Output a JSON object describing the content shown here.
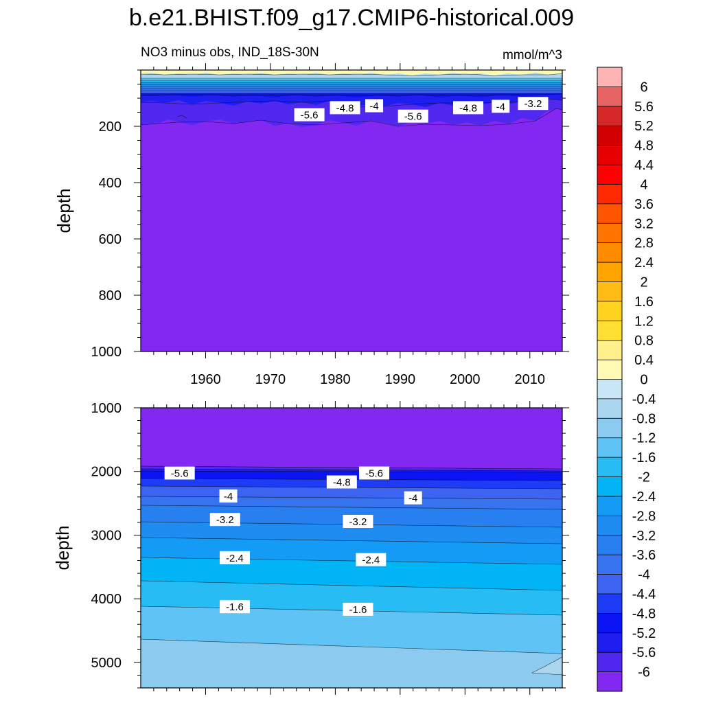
{
  "chart_data": {
    "title": "b.e21.BHIST.f09_g17.CMIP6-historical.009",
    "left_subtitle": "NO3 minus obs, IND_18S-30N",
    "right_subtitle": "mmol/m^3",
    "panels": [
      {
        "name": "upper-panel",
        "type": "contour",
        "ylabel": "depth",
        "ylim": [
          0,
          1000
        ],
        "xlim": [
          1950,
          2015
        ],
        "yticks": [
          200,
          400,
          600,
          800,
          1000
        ],
        "xticks": [
          1960,
          1970,
          1980,
          1990,
          2000,
          2010
        ],
        "contour_labels": [
          {
            "text": "-5.6",
            "x": 1976,
            "y": 160
          },
          {
            "text": "-4.8",
            "x": 1981.5,
            "y": 135
          },
          {
            "text": "-4",
            "x": 1986,
            "y": 128
          },
          {
            "text": "-5.6",
            "x": 1992,
            "y": 165
          },
          {
            "text": "-4.8",
            "x": 2000.5,
            "y": 135
          },
          {
            "text": "-4",
            "x": 2005.5,
            "y": 130
          },
          {
            "text": "-3.2",
            "x": 2010.5,
            "y": 120
          }
        ]
      },
      {
        "name": "lower-panel",
        "type": "contour",
        "ylabel": "depth",
        "ylim": [
          1000,
          5400
        ],
        "xlim": [
          1950,
          2015
        ],
        "yticks": [
          1000,
          2000,
          3000,
          4000,
          5000
        ],
        "xticks": [],
        "contour_labels": [
          {
            "text": "-5.6",
            "x": 1956,
            "y": 2030
          },
          {
            "text": "-4.8",
            "x": 1981,
            "y": 2170
          },
          {
            "text": "-5.6",
            "x": 1986,
            "y": 2030
          },
          {
            "text": "-4",
            "x": 1963.5,
            "y": 2390
          },
          {
            "text": "-4",
            "x": 1992,
            "y": 2420
          },
          {
            "text": "-3.2",
            "x": 1963,
            "y": 2760
          },
          {
            "text": "-3.2",
            "x": 1983.5,
            "y": 2790
          },
          {
            "text": "-2.4",
            "x": 1964.5,
            "y": 3360
          },
          {
            "text": "-2.4",
            "x": 1985.5,
            "y": 3390
          },
          {
            "text": "-1.6",
            "x": 1964.5,
            "y": 4130
          },
          {
            "text": "-1.6",
            "x": 1983.5,
            "y": 4170
          }
        ]
      }
    ],
    "colorbar": {
      "labels": [
        "6",
        "5.6",
        "5.2",
        "4.8",
        "4.4",
        "4",
        "3.6",
        "3.2",
        "2.8",
        "2.4",
        "2",
        "1.6",
        "1.2",
        "0.8",
        "0.4",
        "0",
        "-0.4",
        "-0.8",
        "-1.2",
        "-1.6",
        "-2",
        "-2.4",
        "-2.8",
        "-3.2",
        "-3.6",
        "-4",
        "-4.4",
        "-4.8",
        "-5.2",
        "-5.6",
        "-6"
      ],
      "colors": [
        "#ffb4b4",
        "#e86464",
        "#d62828",
        "#d20000",
        "#e60000",
        "#ff0000",
        "#ff2a00",
        "#ff5500",
        "#ff7300",
        "#ff8c00",
        "#ffa500",
        "#ffbb14",
        "#ffd21e",
        "#ffe032",
        "#fff08c",
        "#fff9b4",
        "#c8e6f5",
        "#aad6f0",
        "#8ccaf0",
        "#5fc3f5",
        "#28bcf5",
        "#00b4f5",
        "#149bf5",
        "#1e8cf0",
        "#2880f0",
        "#3773ee",
        "#3c64f0",
        "#1e3cf5",
        "#0a14f5",
        "#1e1ef0",
        "#5028f0",
        "#8228f0"
      ]
    }
  }
}
